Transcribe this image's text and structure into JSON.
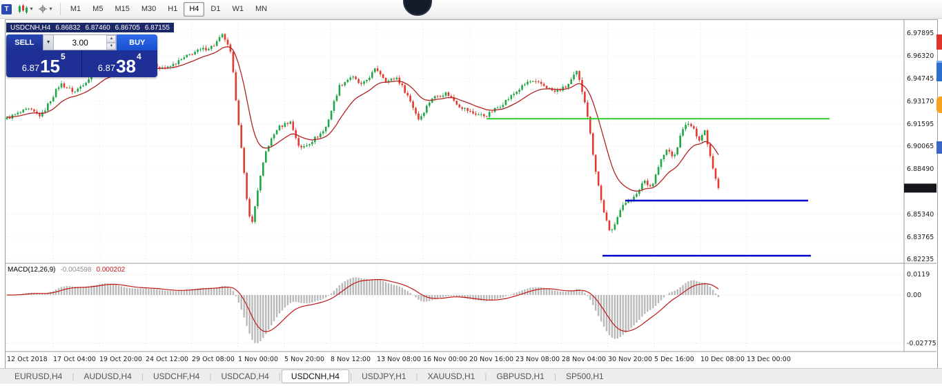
{
  "app": {
    "window_icon": "T"
  },
  "toolbar": {
    "timeframes": [
      "M1",
      "M5",
      "M15",
      "M30",
      "H1",
      "H4",
      "D1",
      "W1",
      "MN"
    ],
    "active_timeframe": "H4"
  },
  "chart_header": {
    "symbol": "USDCNH,H4",
    "open": "6.86832",
    "high": "6.87460",
    "low": "6.86705",
    "close": "6.87155"
  },
  "trade_panel": {
    "sell_label": "SELL",
    "buy_label": "BUY",
    "volume": "3.00",
    "sell_price": {
      "big": "6.87",
      "mid": "15",
      "sup": "5"
    },
    "buy_price": {
      "big": "6.87",
      "mid": "38",
      "sup": "4"
    }
  },
  "price_axis": {
    "ticks": [
      {
        "text": "6.97895",
        "price": 6.97895
      },
      {
        "text": "6.96320",
        "price": 6.9632
      },
      {
        "text": "6.94745",
        "price": 6.94745
      },
      {
        "text": "6.93170",
        "price": 6.9317
      },
      {
        "text": "6.91595",
        "price": 6.91595
      },
      {
        "text": "6.90065",
        "price": 6.90065
      },
      {
        "text": "6.88490",
        "price": 6.8849
      },
      {
        "text": "6.85340",
        "price": 6.8534
      },
      {
        "text": "6.83765",
        "price": 6.83765
      },
      {
        "text": "6.82235",
        "price": 6.82235
      }
    ],
    "current": {
      "text": "6.87155",
      "price": 6.87155
    }
  },
  "macd_panel": {
    "label": "MACD(12,26,9)",
    "main_value": "-0.004598",
    "signal_value": "0.000202",
    "ticks": [
      {
        "text": "0.0119",
        "value": 0.0119
      },
      {
        "text": "0.00",
        "value": 0
      },
      {
        "text": "-0.02775",
        "value": -0.02775
      }
    ]
  },
  "time_axis": [
    "12 Oct 2018",
    "17 Oct 04:00",
    "19 Oct 20:00",
    "24 Oct 12:00",
    "29 Oct 08:00",
    "1 Nov 00:00",
    "5 Nov 20:00",
    "8 Nov 12:00",
    "13 Nov 08:00",
    "16 Nov 00:00",
    "20 Nov 16:00",
    "23 Nov 08:00",
    "28 Nov 04:00",
    "30 Nov 20:00",
    "5 Dec 16:00",
    "10 Dec 08:00",
    "13 Dec 00:00"
  ],
  "tabs": {
    "items": [
      "EURUSD,H4",
      "AUDUSD,H4",
      "USDCHF,H4",
      "USDCAD,H4",
      "USDCNH,H4",
      "USDJPY,H1",
      "XAUUSD,H1",
      "GBPUSD,H1",
      "SP500,H1"
    ],
    "active": "USDCNH,H4"
  },
  "chart_data": {
    "type": "candlestick",
    "symbol": "USDCNH",
    "timeframe": "H4",
    "ohlc_last": {
      "open": 6.86832,
      "high": 6.8746,
      "low": 6.86705,
      "close": 6.87155
    },
    "current_price": 6.87155,
    "ylim": [
      6.82,
      6.9856
    ],
    "num_candles": 262,
    "price_path": [
      [
        0.0,
        6.92
      ],
      [
        0.03,
        6.926
      ],
      [
        0.048,
        6.9215
      ],
      [
        0.075,
        6.944
      ],
      [
        0.095,
        6.938
      ],
      [
        0.135,
        6.957
      ],
      [
        0.165,
        6.95
      ],
      [
        0.195,
        6.958
      ],
      [
        0.225,
        6.9545
      ],
      [
        0.262,
        6.9655
      ],
      [
        0.29,
        6.97
      ],
      [
        0.304,
        6.978
      ],
      [
        0.315,
        6.964
      ],
      [
        0.326,
        6.915
      ],
      [
        0.337,
        6.864
      ],
      [
        0.344,
        6.845
      ],
      [
        0.353,
        6.872
      ],
      [
        0.365,
        6.899
      ],
      [
        0.38,
        6.913
      ],
      [
        0.398,
        6.918
      ],
      [
        0.412,
        6.8985
      ],
      [
        0.428,
        6.904
      ],
      [
        0.447,
        6.912
      ],
      [
        0.467,
        6.942
      ],
      [
        0.484,
        6.949
      ],
      [
        0.499,
        6.9425
      ],
      [
        0.519,
        6.9545
      ],
      [
        0.534,
        6.9455
      ],
      [
        0.548,
        6.948
      ],
      [
        0.564,
        6.935
      ],
      [
        0.579,
        6.919
      ],
      [
        0.597,
        6.934
      ],
      [
        0.618,
        6.9375
      ],
      [
        0.636,
        6.9285
      ],
      [
        0.654,
        6.9235
      ],
      [
        0.673,
        6.9215
      ],
      [
        0.694,
        6.929
      ],
      [
        0.714,
        6.9375
      ],
      [
        0.733,
        6.9455
      ],
      [
        0.752,
        6.9435
      ],
      [
        0.77,
        6.938
      ],
      [
        0.787,
        6.942
      ],
      [
        0.801,
        6.952
      ],
      [
        0.814,
        6.929
      ],
      [
        0.826,
        6.888
      ],
      [
        0.836,
        6.861
      ],
      [
        0.848,
        6.839
      ],
      [
        0.86,
        6.855
      ],
      [
        0.872,
        6.863
      ],
      [
        0.884,
        6.8655
      ],
      [
        0.895,
        6.8775
      ],
      [
        0.906,
        6.872
      ],
      [
        0.918,
        6.8895
      ],
      [
        0.928,
        6.8985
      ],
      [
        0.938,
        6.8925
      ],
      [
        0.95,
        6.9135
      ],
      [
        0.96,
        6.916
      ],
      [
        0.973,
        6.9055
      ],
      [
        0.981,
        6.9115
      ],
      [
        0.99,
        6.8905
      ],
      [
        1.0,
        6.87155
      ]
    ],
    "levels": [
      {
        "name": "resistance-green",
        "color": "#2ecc2e",
        "price": 6.9196,
        "from": 0.536,
        "to": 0.918
      },
      {
        "name": "support-blue-upper",
        "color": "#0000cc",
        "price": 6.8629,
        "from": 0.69,
        "to": 0.894
      },
      {
        "name": "support-blue-lower",
        "color": "#0000cc",
        "price": 6.8247,
        "from": 0.665,
        "to": 0.897
      }
    ],
    "overlays": [
      {
        "type": "ema",
        "period": 16,
        "color": "#b22222"
      }
    ],
    "indicator": {
      "type": "MACD",
      "fast": 12,
      "slow": 26,
      "signal": 9,
      "main_last": -0.004598,
      "signal_last": 0.000202,
      "ylim": [
        -0.0295,
        0.0135
      ]
    },
    "colors": {
      "up": "#1fa648",
      "down": "#e13b30",
      "histogram": "#b9b9b9",
      "signal": "#c01616"
    }
  }
}
